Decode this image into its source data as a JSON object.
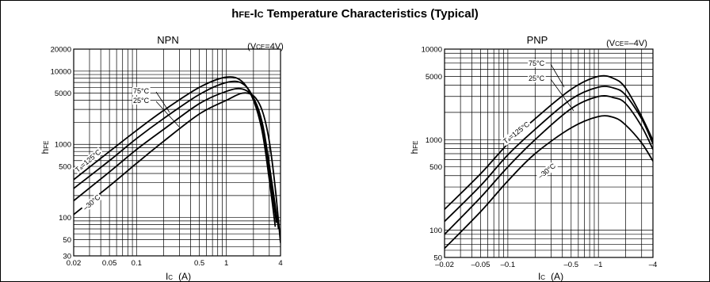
{
  "title": {
    "h": "h",
    "fe": "FE",
    "dash": "-",
    "i": "I",
    "c": "C",
    "rest": " Temperature Characteristics (Typical)"
  },
  "chart_data": [
    {
      "type": "line",
      "subtitle": "NPN",
      "condition": {
        "v": "V",
        "sub": "CE",
        "val": "=4V"
      },
      "xlabel": {
        "i": "I",
        "sub": "C",
        "unit": "(A)"
      },
      "ylabel": {
        "h": "h",
        "sub": "FE"
      },
      "xscale": "log",
      "yscale": "log",
      "xlim": [
        0.02,
        4
      ],
      "ylim": [
        30,
        20000
      ],
      "xticks": [
        0.02,
        0.05,
        0.1,
        0.5,
        1,
        4
      ],
      "xticklabels": [
        "0.02",
        "0.05",
        "0.1",
        "0.5",
        "1",
        "4"
      ],
      "yticks": [
        30,
        50,
        100,
        500,
        1000,
        5000,
        10000,
        20000
      ],
      "yticklabels": [
        "30",
        "50",
        "100",
        "500",
        "1000",
        "5000",
        "10000",
        "20000"
      ],
      "grid": true,
      "series": [
        {
          "name": "Ta=125°C",
          "x": [
            0.02,
            0.05,
            0.1,
            0.2,
            0.5,
            1,
            1.5,
            2,
            2.5,
            3,
            3.5
          ],
          "y": [
            330,
            800,
            1550,
            2900,
            6000,
            8300,
            7200,
            4000,
            1500,
            330,
            75
          ]
        },
        {
          "name": "75°C",
          "x": [
            0.02,
            0.05,
            0.1,
            0.2,
            0.5,
            1,
            1.5,
            2,
            2.5,
            3,
            3.6
          ],
          "y": [
            250,
            600,
            1200,
            2250,
            4800,
            7000,
            6800,
            4300,
            1700,
            420,
            85
          ]
        },
        {
          "name": "25°C",
          "x": [
            0.02,
            0.05,
            0.1,
            0.2,
            0.5,
            1,
            1.5,
            2,
            2.5,
            3,
            3.8
          ],
          "y": [
            170,
            420,
            850,
            1600,
            3600,
            5300,
            5700,
            4300,
            2000,
            530,
            70
          ]
        },
        {
          "name": "-30°C",
          "x": [
            0.02,
            0.05,
            0.1,
            0.2,
            0.5,
            1,
            1.5,
            2,
            2.5,
            3,
            3.5,
            4
          ],
          "y": [
            110,
            270,
            550,
            1100,
            2600,
            4000,
            5000,
            4600,
            2900,
            1100,
            250,
            45
          ]
        }
      ],
      "labels": {
        "t125": {
          "t": "T",
          "sub": "a",
          "val": "=125°C"
        },
        "t75": "75°C",
        "t25": "25°C",
        "tm30": "–30°C"
      }
    },
    {
      "type": "line",
      "subtitle": "PNP",
      "condition": {
        "v": "V",
        "sub": "CE",
        "val": "=–4V"
      },
      "xlabel": {
        "i": "I",
        "sub": "C",
        "unit": "(A)"
      },
      "ylabel": {
        "h": "h",
        "sub": "FE"
      },
      "xscale": "log",
      "yscale": "log",
      "xlim": [
        -0.02,
        -4
      ],
      "ylim": [
        50,
        10000
      ],
      "xticks": [
        -0.02,
        -0.05,
        -0.1,
        -0.5,
        -1,
        -4
      ],
      "xticklabels": [
        "–0.02",
        "–0.05",
        "–0.1",
        "–0.5",
        "–1",
        "–4"
      ],
      "yticks": [
        50,
        100,
        500,
        1000,
        5000,
        10000
      ],
      "yticklabels": [
        "50",
        "100",
        "500",
        "1000",
        "5000",
        "10000"
      ],
      "grid": true,
      "series": [
        {
          "name": "Ta=125°C",
          "x": [
            -0.02,
            -0.05,
            -0.1,
            -0.2,
            -0.5,
            -1,
            -1.5,
            -2,
            -3,
            -4
          ],
          "y": [
            170,
            420,
            900,
            1700,
            3600,
            5000,
            4700,
            3700,
            1800,
            980
          ]
        },
        {
          "name": "75°C",
          "x": [
            -0.02,
            -0.05,
            -0.1,
            -0.2,
            -0.5,
            -1,
            -1.5,
            -2,
            -3,
            -4
          ],
          "y": [
            125,
            310,
            680,
            1300,
            2800,
            3800,
            3700,
            3100,
            1700,
            900
          ]
        },
        {
          "name": "25°C",
          "x": [
            -0.02,
            -0.05,
            -0.1,
            -0.2,
            -0.5,
            -1,
            -1.5,
            -2,
            -3,
            -4
          ],
          "y": [
            90,
            230,
            500,
            1000,
            2200,
            3000,
            2900,
            2500,
            1400,
            780
          ]
        },
        {
          "name": "-30°C",
          "x": [
            -0.02,
            -0.05,
            -0.1,
            -0.2,
            -0.5,
            -1,
            -1.5,
            -2,
            -3,
            -4
          ],
          "y": [
            63,
            160,
            350,
            700,
            1350,
            1800,
            1750,
            1450,
            920,
            580
          ]
        }
      ],
      "labels": {
        "t125": {
          "t": "T",
          "sub": "a",
          "val": "=125°C"
        },
        "t75": "75°C",
        "t25": "25°C",
        "tm30": "–30°C"
      }
    }
  ]
}
